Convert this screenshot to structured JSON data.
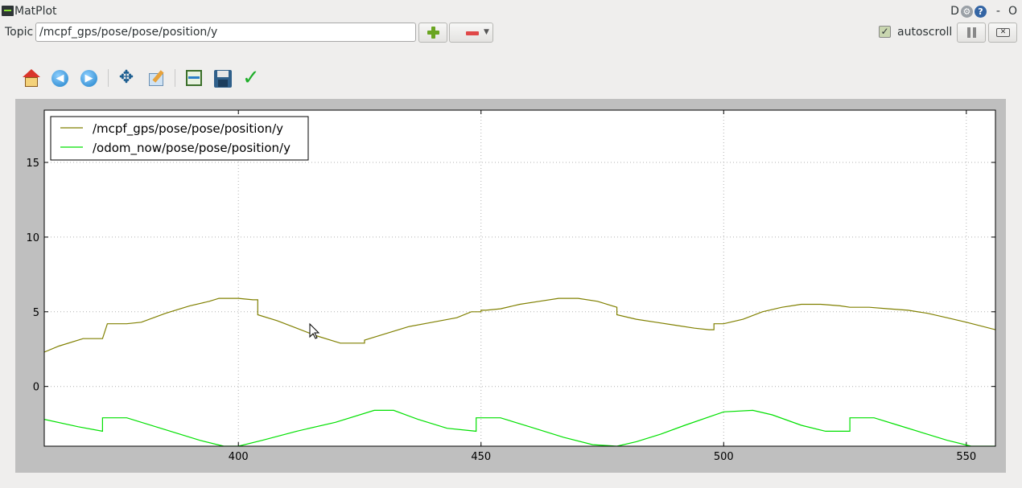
{
  "window": {
    "title": "MatPlot",
    "controls": {
      "d_label": "D",
      "gear": "⚙",
      "help": "?",
      "min": "-",
      "close": "O"
    }
  },
  "topic": {
    "label": "Topic",
    "value": "/mcpf_gps/pose/pose/position/y"
  },
  "autoscroll": {
    "label": "autoscroll",
    "checked": true
  },
  "toolbar": {
    "icons": [
      "home-icon",
      "back-icon",
      "forward-icon",
      "pan-icon",
      "edit-axes-icon",
      "zoom-fit-icon",
      "save-icon",
      "apply-icon"
    ]
  },
  "colors": {
    "mcpf": "#808000",
    "odom": "#00e000",
    "grid": "#b0b0b0"
  },
  "chart_data": {
    "type": "line",
    "xlim": [
      360,
      556
    ],
    "ylim": [
      -4,
      18.5
    ],
    "xticks": [
      400,
      450,
      500,
      550
    ],
    "yticks": [
      0,
      5,
      10,
      15
    ],
    "grid": true,
    "legend_position": "top-left",
    "series": [
      {
        "name": "/mcpf_gps/pose/pose/position/y",
        "color": "#808000",
        "x": [
          360,
          363,
          367,
          368,
          372,
          372,
          373,
          377,
          380,
          385,
          390,
          394,
          396,
          400,
          403,
          404,
          404,
          408,
          412,
          416,
          419,
          421,
          425,
          426,
          426,
          430,
          435,
          440,
          445,
          448,
          450,
          450,
          451,
          454,
          458,
          462,
          466,
          470,
          474,
          478,
          478,
          482,
          486,
          490,
          494,
          497,
          498,
          498,
          500,
          504,
          508,
          512,
          516,
          520,
          524,
          526,
          527,
          530,
          534,
          538,
          542,
          546,
          550,
          556
        ],
        "y": [
          2.3,
          2.7,
          3.1,
          3.2,
          3.2,
          3.2,
          4.2,
          4.2,
          4.3,
          4.9,
          5.4,
          5.7,
          5.9,
          5.9,
          5.8,
          5.8,
          4.8,
          4.4,
          3.9,
          3.4,
          3.1,
          2.9,
          2.9,
          2.9,
          3.1,
          3.5,
          4.0,
          4.3,
          4.6,
          5.0,
          5.0,
          5.1,
          5.1,
          5.2,
          5.5,
          5.7,
          5.9,
          5.9,
          5.7,
          5.3,
          4.8,
          4.5,
          4.3,
          4.1,
          3.9,
          3.8,
          3.8,
          4.2,
          4.2,
          4.5,
          5.0,
          5.3,
          5.5,
          5.5,
          5.4,
          5.3,
          5.3,
          5.3,
          5.2,
          5.1,
          4.9,
          4.6,
          4.3,
          3.8
        ]
      },
      {
        "name": "/odom_now/pose/pose/position/y",
        "color": "#00e000",
        "x": [
          360,
          367,
          372,
          372,
          377,
          385,
          392,
          397,
          400,
          405,
          412,
          420,
          428,
          432,
          437,
          443,
          449,
          449,
          454,
          460,
          467,
          473,
          478,
          482,
          487,
          492,
          500,
          506,
          510,
          516,
          521,
          526,
          526,
          531,
          536,
          541,
          546,
          551,
          556
        ],
        "y": [
          -2.2,
          -2.7,
          -3.0,
          -2.1,
          -2.1,
          -2.9,
          -3.6,
          -4.0,
          -4.0,
          -3.6,
          -3.0,
          -2.4,
          -1.6,
          -1.6,
          -2.2,
          -2.8,
          -3.0,
          -2.1,
          -2.1,
          -2.7,
          -3.4,
          -3.9,
          -4.0,
          -3.7,
          -3.2,
          -2.6,
          -1.7,
          -1.6,
          -1.9,
          -2.6,
          -3.0,
          -3.0,
          -2.1,
          -2.1,
          -2.6,
          -3.1,
          -3.6,
          -4.0,
          -4.0
        ]
      }
    ]
  }
}
